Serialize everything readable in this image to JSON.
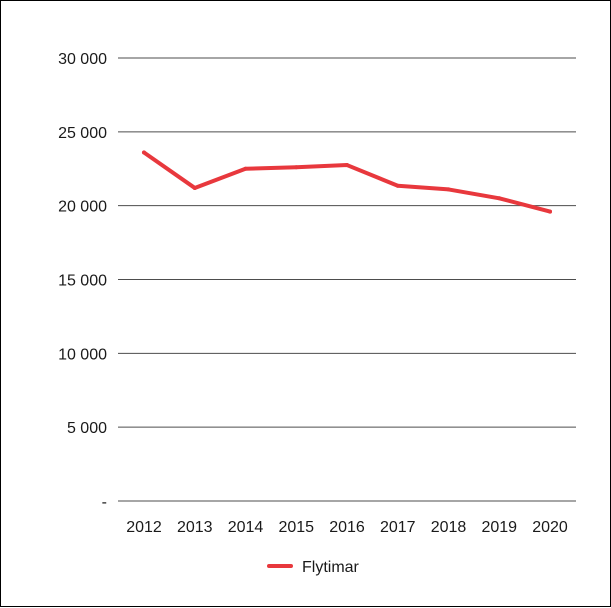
{
  "chart_data": {
    "type": "line",
    "title": "",
    "xlabel": "",
    "ylabel": "",
    "categories": [
      "2012",
      "2013",
      "2014",
      "2015",
      "2016",
      "2017",
      "2018",
      "2019",
      "2020"
    ],
    "ylim": [
      0,
      30000
    ],
    "yticks": [
      {
        "value": 0,
        "label": "-"
      },
      {
        "value": 5000,
        "label": "5 000"
      },
      {
        "value": 10000,
        "label": "10 000"
      },
      {
        "value": 15000,
        "label": "15 000"
      },
      {
        "value": 20000,
        "label": "20 000"
      },
      {
        "value": 25000,
        "label": "25 000"
      },
      {
        "value": 30000,
        "label": "30 000"
      }
    ],
    "series": [
      {
        "name": "Flytimar",
        "color": "#e8383d",
        "values": [
          23600,
          21200,
          22500,
          22600,
          22750,
          21350,
          21100,
          20500,
          19600
        ]
      }
    ],
    "grid": "horizontal",
    "legend_position": "bottom-center"
  }
}
